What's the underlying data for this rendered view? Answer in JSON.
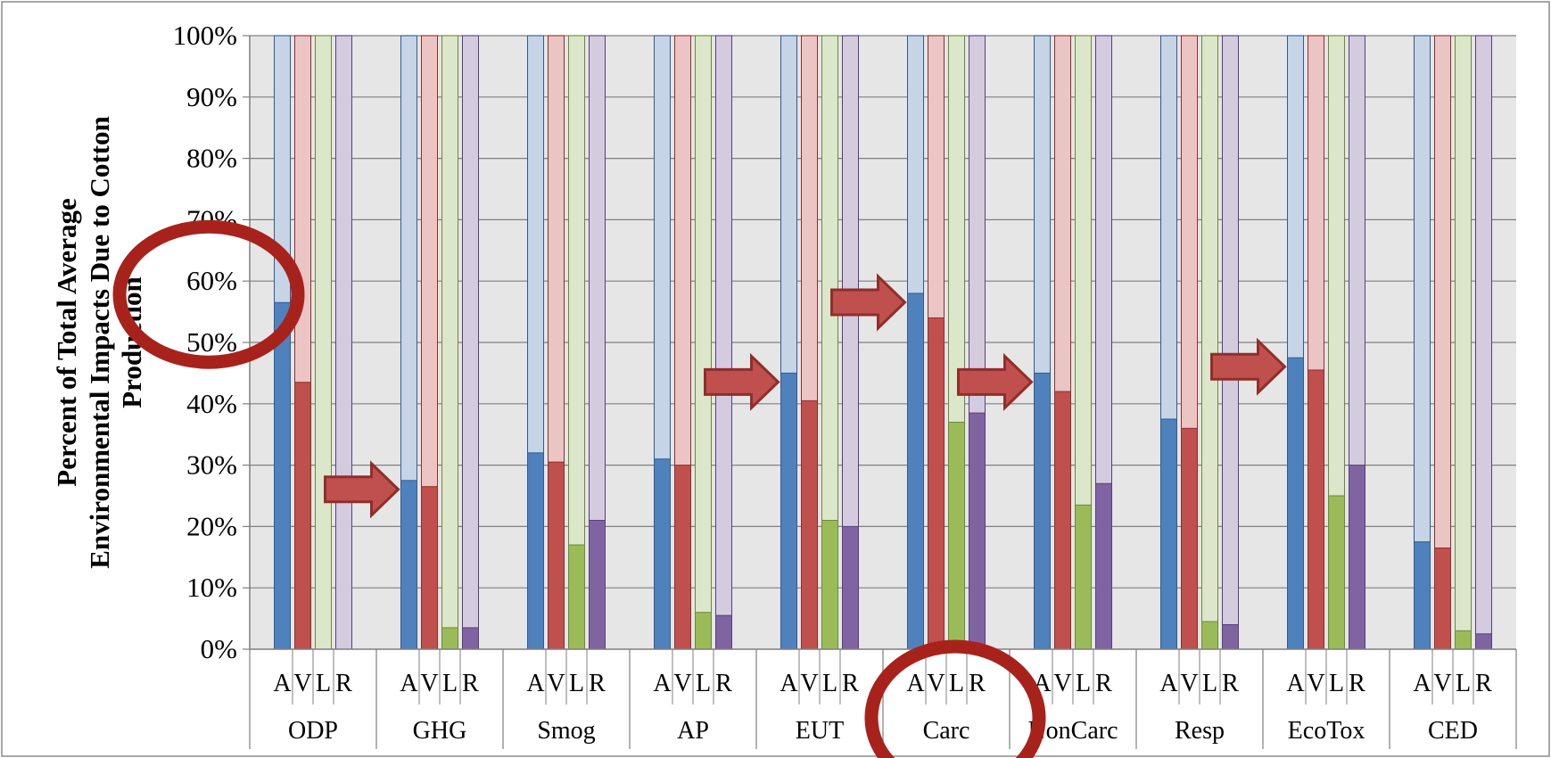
{
  "chart_data": {
    "type": "bar",
    "stacked_to_100": true,
    "ylabel_lines": [
      "Percent of Total Average",
      "Environmental Impacts Due to Cotton",
      "Production"
    ],
    "xlabel": "",
    "ylim": [
      0,
      100
    ],
    "y_ticks": [
      "0%",
      "10%",
      "20%",
      "30%",
      "40%",
      "50%",
      "60%",
      "70%",
      "80%",
      "90%",
      "100%"
    ],
    "grid": true,
    "legend": "none",
    "categories": [
      "ODP",
      "GHG",
      "Smog",
      "AP",
      "EUT",
      "Carc",
      "NonCarc",
      "Resp",
      "EcoTox",
      "CED"
    ],
    "sub_categories": [
      "A",
      "V",
      "L",
      "R"
    ],
    "series": [
      {
        "values": [
          56.5,
          27.5,
          32,
          31,
          45,
          58,
          45,
          37.5,
          47.5,
          17.5
        ]
      },
      {
        "values": [
          43.5,
          26.5,
          30.5,
          30,
          40.5,
          54,
          42,
          36,
          45.5,
          16.5
        ]
      },
      {
        "values": [
          0,
          3.5,
          17,
          6,
          21,
          37,
          23.5,
          4.5,
          25,
          3
        ]
      },
      {
        "values": [
          0,
          3.5,
          21,
          5.5,
          20,
          38.5,
          27,
          4,
          30,
          2.5
        ]
      }
    ],
    "colors": {
      "solid": [
        "#4f81bd",
        "#c0504d",
        "#9bbb59",
        "#8064a2"
      ],
      "light": [
        "#c6d4e5",
        "#ebc5c4",
        "#dce6cb",
        "#d4cbdf"
      ],
      "edge": [
        "#2e5c94",
        "#8f2e2b",
        "#6a8a35",
        "#55407a"
      ],
      "plot_background": "#e6e6e6",
      "gridline": "#7f7f7f",
      "annotation": "#a8221c",
      "arrow_fill": "#c0504d",
      "arrow_edge": "#8f2e2b"
    },
    "annotations": [
      {
        "kind": "circle",
        "target": "60% y-axis tick"
      },
      {
        "kind": "circle",
        "target": "Carc category label"
      },
      {
        "kind": "arrow",
        "points_to": "GHG A"
      },
      {
        "kind": "arrow",
        "points_to": "EUT A"
      },
      {
        "kind": "arrow",
        "points_to": "Carc A"
      },
      {
        "kind": "arrow",
        "points_to": "NonCarc A"
      },
      {
        "kind": "arrow",
        "points_to": "EcoTox A"
      }
    ]
  }
}
